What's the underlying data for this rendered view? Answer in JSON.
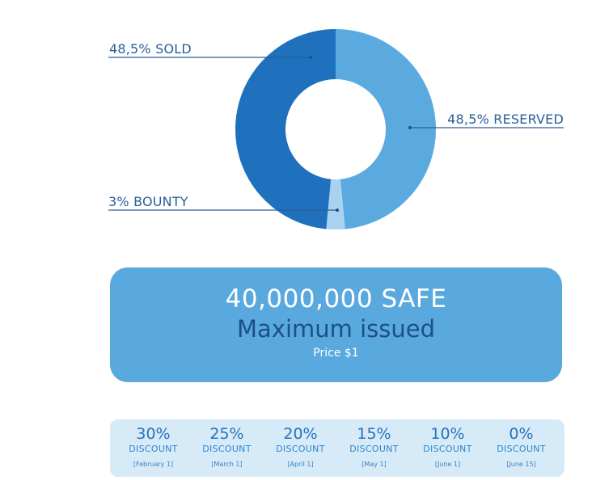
{
  "chart_data": {
    "type": "pie",
    "donut": true,
    "slices": [
      {
        "label": "48,5% SOLD",
        "value": 48.5,
        "color": "#1f71bd"
      },
      {
        "label": "48,5% RESERVED",
        "value": 48.5,
        "color": "#5aaae0"
      },
      {
        "label": "3% BOUNTY",
        "value": 3,
        "color": "#a9d2f1"
      }
    ],
    "start_slice": "RESERVED",
    "direction": "clockwise",
    "start_angle_deg": 0
  },
  "info": {
    "amount": "40,000,000 SAFE",
    "subtitle": "Maximum issued",
    "price": "Price $1"
  },
  "discounts": [
    {
      "percent": "30%",
      "label": "DISCOUNT",
      "date": "[February 1]"
    },
    {
      "percent": "25%",
      "label": "DISCOUNT",
      "date": "[March 1]"
    },
    {
      "percent": "20%",
      "label": "DISCOUNT",
      "date": "[April 1]"
    },
    {
      "percent": "15%",
      "label": "DISCOUNT",
      "date": "[May 1]"
    },
    {
      "percent": "10%",
      "label": "DISCOUNT",
      "date": "[June 1]"
    },
    {
      "percent": "0%",
      "label": "DISCOUNT",
      "date": "[June 15]"
    }
  ],
  "colors": {
    "box_bg": "#5aa9de",
    "subtitle": "#1b4f8a",
    "strip_bg": "#d6eaf8",
    "leader": "#2a5e98"
  }
}
